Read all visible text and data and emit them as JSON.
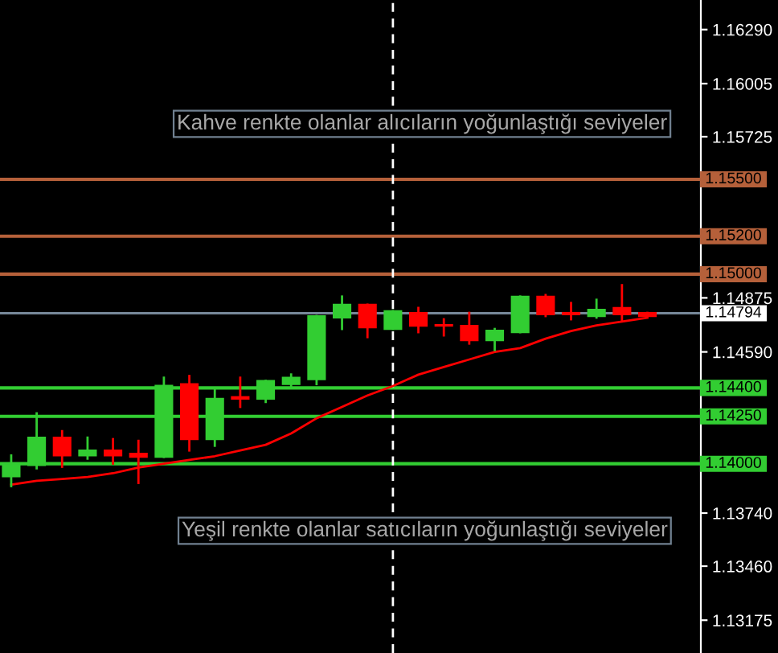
{
  "chart_data": {
    "type": "candlestick",
    "categories": [
      null,
      null,
      null,
      null,
      null,
      null,
      null,
      null,
      null,
      null,
      null,
      null,
      null,
      null,
      null,
      null,
      null,
      null,
      null,
      null,
      null,
      null,
      null,
      null,
      null,
      null
    ],
    "ohlc": [
      [
        1.13933,
        1.14044,
        1.13882,
        1.13993
      ],
      [
        1.13993,
        1.14266,
        1.13976,
        1.14138
      ],
      [
        1.14138,
        1.14172,
        1.13984,
        1.14044
      ],
      [
        1.14044,
        1.14138,
        1.14027,
        1.1407
      ],
      [
        1.1407,
        1.1413,
        1.14001,
        1.14044
      ],
      [
        1.14053,
        1.14121,
        1.13899,
        1.14036
      ],
      [
        1.14036,
        1.14454,
        1.14036,
        1.14412
      ],
      [
        1.1442,
        1.14463,
        1.1407,
        1.1413
      ],
      [
        1.1413,
        1.14395,
        1.14095,
        1.14343
      ],
      [
        1.14352,
        1.14454,
        1.143,
        1.14343
      ],
      [
        1.14343,
        1.14437,
        1.14326,
        1.14437
      ],
      [
        1.1442,
        1.14471,
        1.14403,
        1.14454
      ],
      [
        1.14446,
        1.14779,
        1.1442,
        1.14779
      ],
      [
        1.14771,
        1.14882,
        1.14711,
        1.14839
      ],
      [
        1.14839,
        1.14839,
        1.14668,
        1.14719
      ],
      [
        1.14711,
        1.14805,
        1.14711,
        1.14805
      ],
      [
        1.14796,
        1.14822,
        1.14694,
        1.14728
      ],
      [
        1.1473,
        1.14762,
        1.14677,
        1.14728
      ],
      [
        1.14728,
        1.14796,
        1.14634,
        1.14651
      ],
      [
        1.14651,
        1.14711,
        1.146,
        1.14702
      ],
      [
        1.14694,
        1.14882,
        1.14694,
        1.14882
      ],
      [
        1.14882,
        1.1489,
        1.14779,
        1.14788
      ],
      [
        1.14796,
        1.14848,
        1.14762,
        1.14788
      ],
      [
        1.14779,
        1.14865,
        1.14771,
        1.14813
      ],
      [
        1.14822,
        1.14942,
        1.14754,
        1.14788
      ],
      [
        1.14796,
        1.14796,
        1.14779,
        1.14779
      ]
    ],
    "colors": [
      "#32cd32",
      "#32cd32",
      "#ff0000",
      "#32cd32",
      "#ff0000",
      "#ff0000",
      "#32cd32",
      "#ff0000",
      "#32cd32",
      "#ff0000",
      "#32cd32",
      "#32cd32",
      "#32cd32",
      "#32cd32",
      "#ff0000",
      "#32cd32",
      "#ff0000",
      "#ff0000",
      "#ff0000",
      "#32cd32",
      "#32cd32",
      "#ff0000",
      "#ff0000",
      "#32cd32",
      "#ff0000",
      "#ff0000"
    ],
    "series": [
      {
        "type": "line",
        "color": "#ff0000",
        "values": [
          1.1389,
          1.1391,
          1.1392,
          1.1393,
          1.1395,
          1.1398,
          1.14,
          1.1402,
          1.1404,
          1.1407,
          1.141,
          1.1416,
          1.1424,
          1.143,
          1.1436,
          1.1441,
          1.1447,
          1.1451,
          1.1455,
          1.1459,
          1.1461,
          1.1466,
          1.147,
          1.1473,
          1.1475,
          1.1477
        ]
      }
    ],
    "ylim": [
      1.13002,
      1.16446
    ],
    "yticks": [
      {
        "value": 1.1629,
        "label": "1.16290"
      },
      {
        "value": 1.16005,
        "label": "1.16005"
      },
      {
        "value": 1.15725,
        "label": "1.15725"
      },
      {
        "value": 1.14875,
        "label": "1.14875"
      },
      {
        "value": 1.1459,
        "label": "1.14590"
      },
      {
        "value": 1.1374,
        "label": "1.13740"
      },
      {
        "value": 1.1346,
        "label": "1.13460"
      },
      {
        "value": 1.13175,
        "label": "1.13175"
      }
    ],
    "ref_lines": [
      {
        "axis": "y",
        "value": 1.155,
        "label": "1.15500",
        "color": "#b5603a"
      },
      {
        "axis": "y",
        "value": 1.152,
        "label": "1.15200",
        "color": "#b5603a"
      },
      {
        "axis": "y",
        "value": 1.15,
        "label": "1.15000",
        "color": "#b5603a"
      },
      {
        "axis": "y",
        "value": 1.14794,
        "label": "1.14794",
        "color": "#778899"
      },
      {
        "axis": "y",
        "value": 1.144,
        "label": "1.14400",
        "color": "#32cd32"
      },
      {
        "axis": "y",
        "value": 1.1425,
        "label": "1.14250",
        "color": "#32cd32"
      },
      {
        "axis": "y",
        "value": 1.14,
        "label": "1.14000",
        "color": "#32cd32"
      }
    ],
    "annotations": [
      "Kahve renkte olanlar alıcıların yoğunlaştığı seviyeler",
      "Yeşil renkte olanlar satıcıların yoğunlaştığı seviyeler"
    ],
    "grid": false
  }
}
